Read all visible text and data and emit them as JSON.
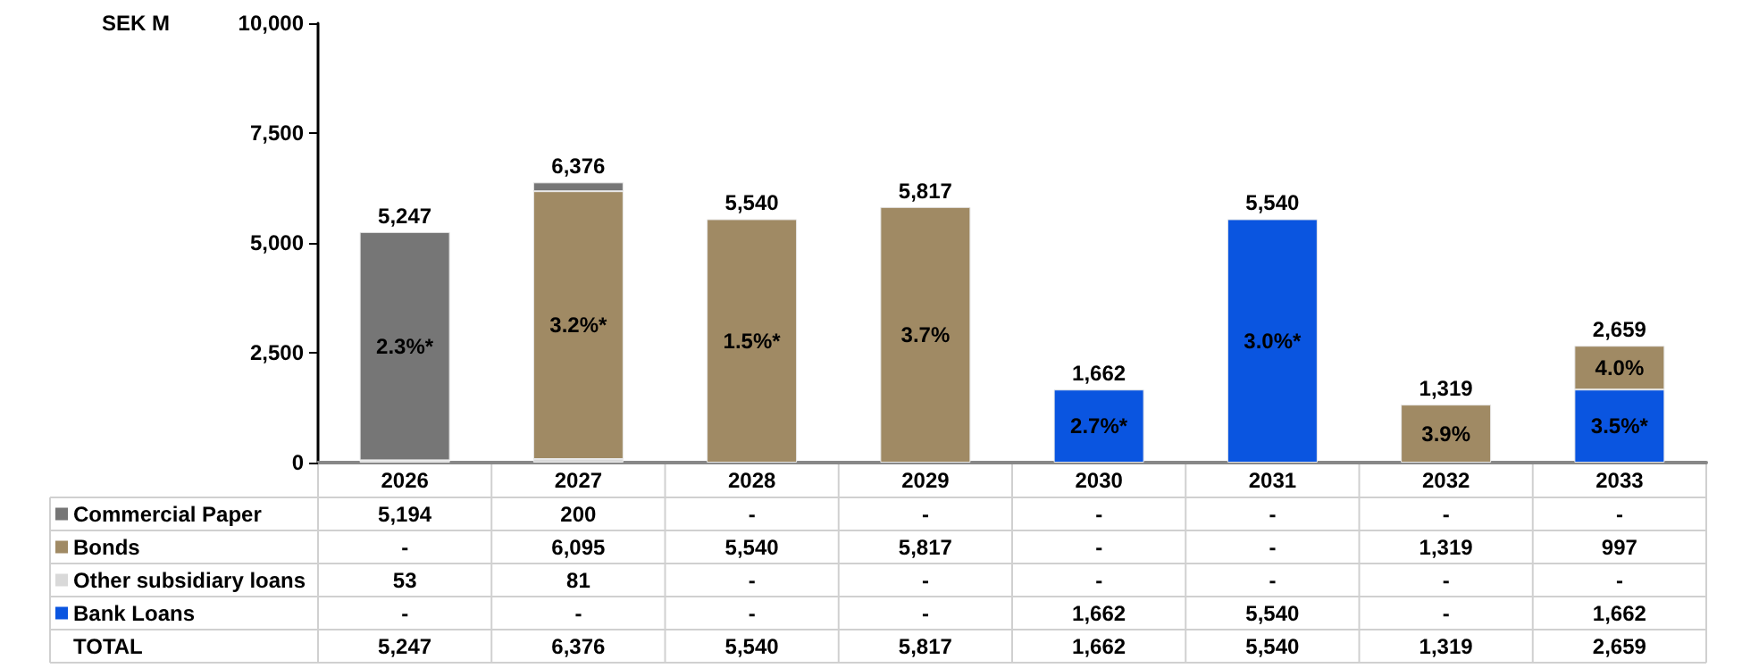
{
  "chart_data": {
    "type": "bar",
    "stacked": true,
    "ylabel": "SEK M",
    "categories": [
      "2026",
      "2027",
      "2028",
      "2029",
      "2030",
      "2031",
      "2032",
      "2033"
    ],
    "series": [
      {
        "name": "Bank Loans",
        "color": "#0a55e0",
        "values": [
          null,
          null,
          null,
          null,
          1662,
          5540,
          null,
          1662
        ],
        "value_labels": [
          "-",
          "-",
          "-",
          "-",
          "1,662",
          "5,540",
          "-",
          "1,662"
        ]
      },
      {
        "name": "Other subsidiary loans",
        "color": "#d9d9d9",
        "values": [
          53,
          81,
          null,
          null,
          null,
          null,
          null,
          null
        ],
        "value_labels": [
          "53",
          "81",
          "-",
          "-",
          "-",
          "-",
          "-",
          "-"
        ]
      },
      {
        "name": "Bonds",
        "color": "#a08a64",
        "values": [
          null,
          6095,
          5540,
          5817,
          null,
          null,
          1319,
          997
        ],
        "value_labels": [
          "-",
          "6,095",
          "5,540",
          "5,817",
          "-",
          "-",
          "1,319",
          "997"
        ]
      },
      {
        "name": "Commercial Paper",
        "color": "#767676",
        "values": [
          5194,
          200,
          null,
          null,
          null,
          null,
          null,
          null
        ],
        "value_labels": [
          "5,194",
          "200",
          "-",
          "-",
          "-",
          "-",
          "-",
          "-"
        ]
      }
    ],
    "totals": [
      "5,247",
      "6,376",
      "5,540",
      "5,817",
      "1,662",
      "5,540",
      "1,319",
      "2,659"
    ],
    "annotations": [
      "TOTAL",
      "2.3%*",
      "3.2%*",
      "1.5%*",
      "3.7%",
      "2.7%*",
      "3.0%*",
      "3.9%",
      "4.0%",
      "3.5%*"
    ],
    "ylim": [
      0,
      10000
    ],
    "yticks": [
      0,
      {
        "value": 2500,
        "label": "2,500"
      },
      {
        "value": 5000,
        "label": "5,000"
      },
      {
        "value": 7500,
        "label": "7,500"
      },
      {
        "value": 10000,
        "label": "10,000"
      }
    ],
    "grid": false,
    "legend": "bottom left"
  }
}
